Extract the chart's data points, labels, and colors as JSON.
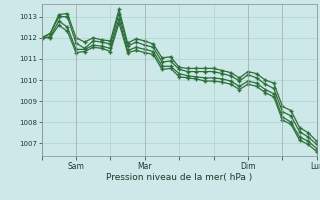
{
  "background_color": "#cde8e8",
  "grid_color": "#a8d8c8",
  "line_color": "#2d6e3a",
  "ylabel_text": "Pression niveau de la mer( hPa )",
  "ylim": [
    1006.4,
    1013.6
  ],
  "yticks": [
    1007,
    1008,
    1009,
    1010,
    1011,
    1012,
    1013
  ],
  "x_tick_labels": [
    "",
    "Sam",
    "",
    "Mar",
    "",
    "",
    "Dim",
    "",
    "Lun"
  ],
  "x_tick_positions": [
    0,
    12,
    24,
    36,
    48,
    60,
    72,
    84,
    96
  ],
  "series": [
    [
      1012.0,
      1012.2,
      1013.1,
      1013.15,
      1012.0,
      1011.8,
      1012.0,
      1011.9,
      1011.85,
      1013.35,
      1011.75,
      1011.95,
      1011.85,
      1011.7,
      1011.05,
      1011.1,
      1010.6,
      1010.55,
      1010.55,
      1010.55,
      1010.55,
      1010.45,
      1010.35,
      1010.1,
      1010.4,
      1010.3,
      1010.0,
      1009.85,
      1008.75,
      1008.55,
      1007.75,
      1007.5,
      1007.1
    ],
    [
      1012.0,
      1012.2,
      1013.0,
      1013.0,
      1011.75,
      1011.5,
      1011.85,
      1011.8,
      1011.7,
      1013.15,
      1011.6,
      1011.8,
      1011.65,
      1011.55,
      1010.85,
      1010.9,
      1010.5,
      1010.4,
      1010.4,
      1010.4,
      1010.4,
      1010.3,
      1010.2,
      1009.95,
      1010.25,
      1010.1,
      1009.8,
      1009.6,
      1008.5,
      1008.3,
      1007.55,
      1007.3,
      1006.95
    ],
    [
      1012.0,
      1012.05,
      1012.8,
      1012.5,
      1011.45,
      1011.45,
      1011.65,
      1011.6,
      1011.5,
      1012.9,
      1011.4,
      1011.55,
      1011.45,
      1011.35,
      1010.65,
      1010.65,
      1010.3,
      1010.2,
      1010.15,
      1010.1,
      1010.1,
      1010.05,
      1009.95,
      1009.7,
      1009.95,
      1009.85,
      1009.55,
      1009.35,
      1008.25,
      1008.0,
      1007.3,
      1007.1,
      1006.75
    ],
    [
      1012.0,
      1012.0,
      1012.6,
      1012.3,
      1011.3,
      1011.35,
      1011.55,
      1011.5,
      1011.35,
      1012.7,
      1011.3,
      1011.4,
      1011.3,
      1011.2,
      1010.5,
      1010.55,
      1010.15,
      1010.1,
      1010.05,
      1009.95,
      1009.95,
      1009.9,
      1009.8,
      1009.55,
      1009.8,
      1009.7,
      1009.4,
      1009.2,
      1008.1,
      1007.9,
      1007.15,
      1006.95,
      1006.6
    ]
  ],
  "num_points": 33,
  "x_start": 0,
  "x_end": 96,
  "marker_size": 3.5,
  "linewidth": 0.9,
  "vline_positions": [
    0,
    12,
    36,
    72,
    84
  ],
  "vline_color": "#aaaaaa"
}
